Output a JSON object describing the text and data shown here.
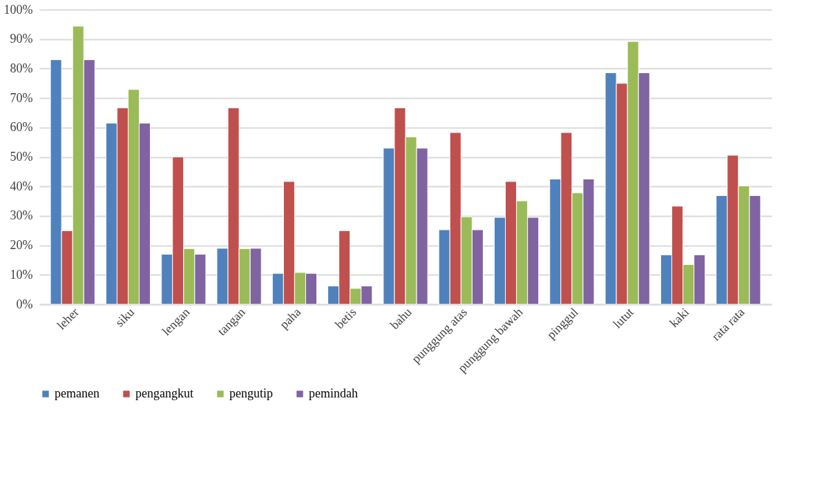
{
  "chart_data": {
    "type": "bar",
    "categories": [
      "leher",
      "siku",
      "lengan",
      "tangan",
      "paha",
      "betis",
      "bahu",
      "punggung atas",
      "punggung bawah",
      "pinggul",
      "lutut",
      "kaki",
      "rata rata"
    ],
    "series": [
      {
        "name": "pemanen",
        "color": "#4f81bd",
        "values": [
          83,
          61.5,
          17,
          19,
          10.5,
          6.2,
          53,
          25.3,
          29.5,
          42.5,
          78.6,
          16.8,
          36.9
        ]
      },
      {
        "name": "pengangkut",
        "color": "#c0504d",
        "values": [
          25,
          66.7,
          50,
          66.7,
          41.7,
          25,
          66.7,
          58.3,
          41.7,
          58.3,
          75,
          33.3,
          50.6
        ]
      },
      {
        "name": "pengutip",
        "color": "#9bbb59",
        "values": [
          94.4,
          72.9,
          18.9,
          18.9,
          10.8,
          5.4,
          56.8,
          29.7,
          35.1,
          37.8,
          89.2,
          13.5,
          40.2
        ]
      },
      {
        "name": "pemindah",
        "color": "#8064a2",
        "values": [
          83,
          61.5,
          17,
          19,
          10.5,
          6.2,
          53,
          25.3,
          29.5,
          42.5,
          78.6,
          16.8,
          36.9
        ]
      }
    ],
    "ylim": [
      0,
      100
    ],
    "yticks": [
      {
        "value": 0,
        "label": "0%"
      },
      {
        "value": 10,
        "label": "10%"
      },
      {
        "value": 20,
        "label": "20%"
      },
      {
        "value": 30,
        "label": "30%"
      },
      {
        "value": 40,
        "label": "40%"
      },
      {
        "value": 50,
        "label": "50%"
      },
      {
        "value": 60,
        "label": "60%"
      },
      {
        "value": 70,
        "label": "70%"
      },
      {
        "value": 80,
        "label": "80%"
      },
      {
        "value": 90,
        "label": "90%"
      },
      {
        "value": 100,
        "label": "100%"
      }
    ],
    "grid": "y",
    "legend": "bottom"
  }
}
